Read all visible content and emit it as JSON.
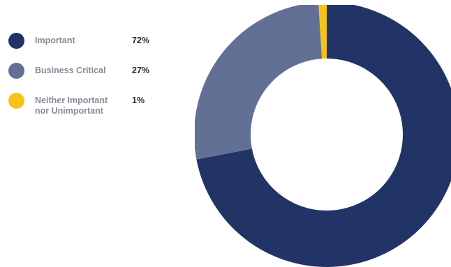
{
  "legend": {
    "items": [
      {
        "label": "Important",
        "value": "72%",
        "color": "#223466"
      },
      {
        "label": "Business Critical",
        "value": "27%",
        "color": "#627096"
      },
      {
        "label": "Neither Important\nnor Unimportant",
        "value": "1%",
        "color": "#f5c31c"
      }
    ]
  },
  "chart_data": {
    "type": "pie",
    "donut": true,
    "legend_position": "left",
    "categories": [
      "Important",
      "Business Critical",
      "Neither Important\nnor Unimportant"
    ],
    "values": [
      72,
      27,
      1
    ],
    "colors": [
      "#223466",
      "#627096",
      "#f5c31c"
    ],
    "units": "%"
  }
}
